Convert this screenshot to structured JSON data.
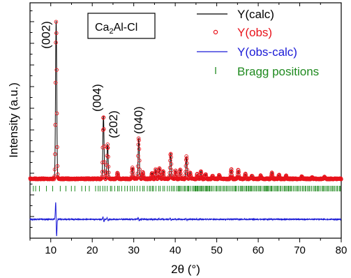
{
  "chart_data": {
    "type": "line",
    "xlabel": "2θ (°)",
    "ylabel": "Intensity (a.u.)",
    "xlim": [
      5,
      80
    ],
    "x_ticks": [
      10,
      20,
      30,
      40,
      50,
      60,
      70,
      80
    ],
    "y_tick_labels": "none",
    "sample_label": {
      "main": "Ca",
      "sub": "2",
      "rest": "Al-Cl"
    },
    "legend_position": "top-right",
    "legend": [
      {
        "name": "Y(calc)",
        "color": "#000000",
        "marker": "line"
      },
      {
        "name": "Y(obs)",
        "color": "#e8141c",
        "marker": "circle"
      },
      {
        "name": "Y(obs-calc)",
        "color": "#1a1ad6",
        "marker": "line"
      },
      {
        "name": "Bragg positions",
        "color": "#1f8a1f",
        "marker": "tick"
      }
    ],
    "peak_annotations": [
      {
        "label": "(002)",
        "x": 11.3
      },
      {
        "label": "(004)",
        "x": 22.7
      },
      {
        "label": "(202)",
        "x": 23.7
      },
      {
        "label": "(040)",
        "x": 31.2
      }
    ],
    "peaks": [
      {
        "x": 11.3,
        "h": 1.0,
        "w": 0.14
      },
      {
        "x": 22.7,
        "h": 0.4,
        "w": 0.14
      },
      {
        "x": 23.7,
        "h": 0.22,
        "w": 0.14
      },
      {
        "x": 26.1,
        "h": 0.04,
        "w": 0.12
      },
      {
        "x": 29.7,
        "h": 0.07,
        "w": 0.13
      },
      {
        "x": 31.2,
        "h": 0.26,
        "w": 0.14
      },
      {
        "x": 32.2,
        "h": 0.04,
        "w": 0.12
      },
      {
        "x": 34.4,
        "h": 0.04,
        "w": 0.12
      },
      {
        "x": 35.3,
        "h": 0.06,
        "w": 0.12
      },
      {
        "x": 36.2,
        "h": 0.07,
        "w": 0.12
      },
      {
        "x": 37.1,
        "h": 0.05,
        "w": 0.12
      },
      {
        "x": 38.9,
        "h": 0.16,
        "w": 0.14
      },
      {
        "x": 40.1,
        "h": 0.05,
        "w": 0.12
      },
      {
        "x": 41.2,
        "h": 0.06,
        "w": 0.12
      },
      {
        "x": 42.7,
        "h": 0.14,
        "w": 0.14
      },
      {
        "x": 43.6,
        "h": 0.04,
        "w": 0.12
      },
      {
        "x": 45.3,
        "h": 0.03,
        "w": 0.12
      },
      {
        "x": 46.2,
        "h": 0.05,
        "w": 0.12
      },
      {
        "x": 47.3,
        "h": 0.03,
        "w": 0.12
      },
      {
        "x": 49.0,
        "h": 0.02,
        "w": 0.12
      },
      {
        "x": 50.6,
        "h": 0.025,
        "w": 0.12
      },
      {
        "x": 53.5,
        "h": 0.06,
        "w": 0.13
      },
      {
        "x": 55.2,
        "h": 0.055,
        "w": 0.13
      },
      {
        "x": 56.9,
        "h": 0.03,
        "w": 0.12
      },
      {
        "x": 58.5,
        "h": 0.02,
        "w": 0.12
      },
      {
        "x": 60.6,
        "h": 0.02,
        "w": 0.12
      },
      {
        "x": 63.3,
        "h": 0.04,
        "w": 0.12
      },
      {
        "x": 65.0,
        "h": 0.025,
        "w": 0.12
      },
      {
        "x": 66.7,
        "h": 0.02,
        "w": 0.12
      },
      {
        "x": 70.5,
        "h": 0.015,
        "w": 0.12
      },
      {
        "x": 73.0,
        "h": 0.012,
        "w": 0.12
      },
      {
        "x": 76.0,
        "h": 0.012,
        "w": 0.12
      }
    ],
    "bragg_positions_range": [
      5.8,
      80
    ],
    "colors": {
      "calc": "#000000",
      "obs": "#e8141c",
      "diff": "#1a1ad6",
      "bragg": "#1f8a1f"
    }
  }
}
